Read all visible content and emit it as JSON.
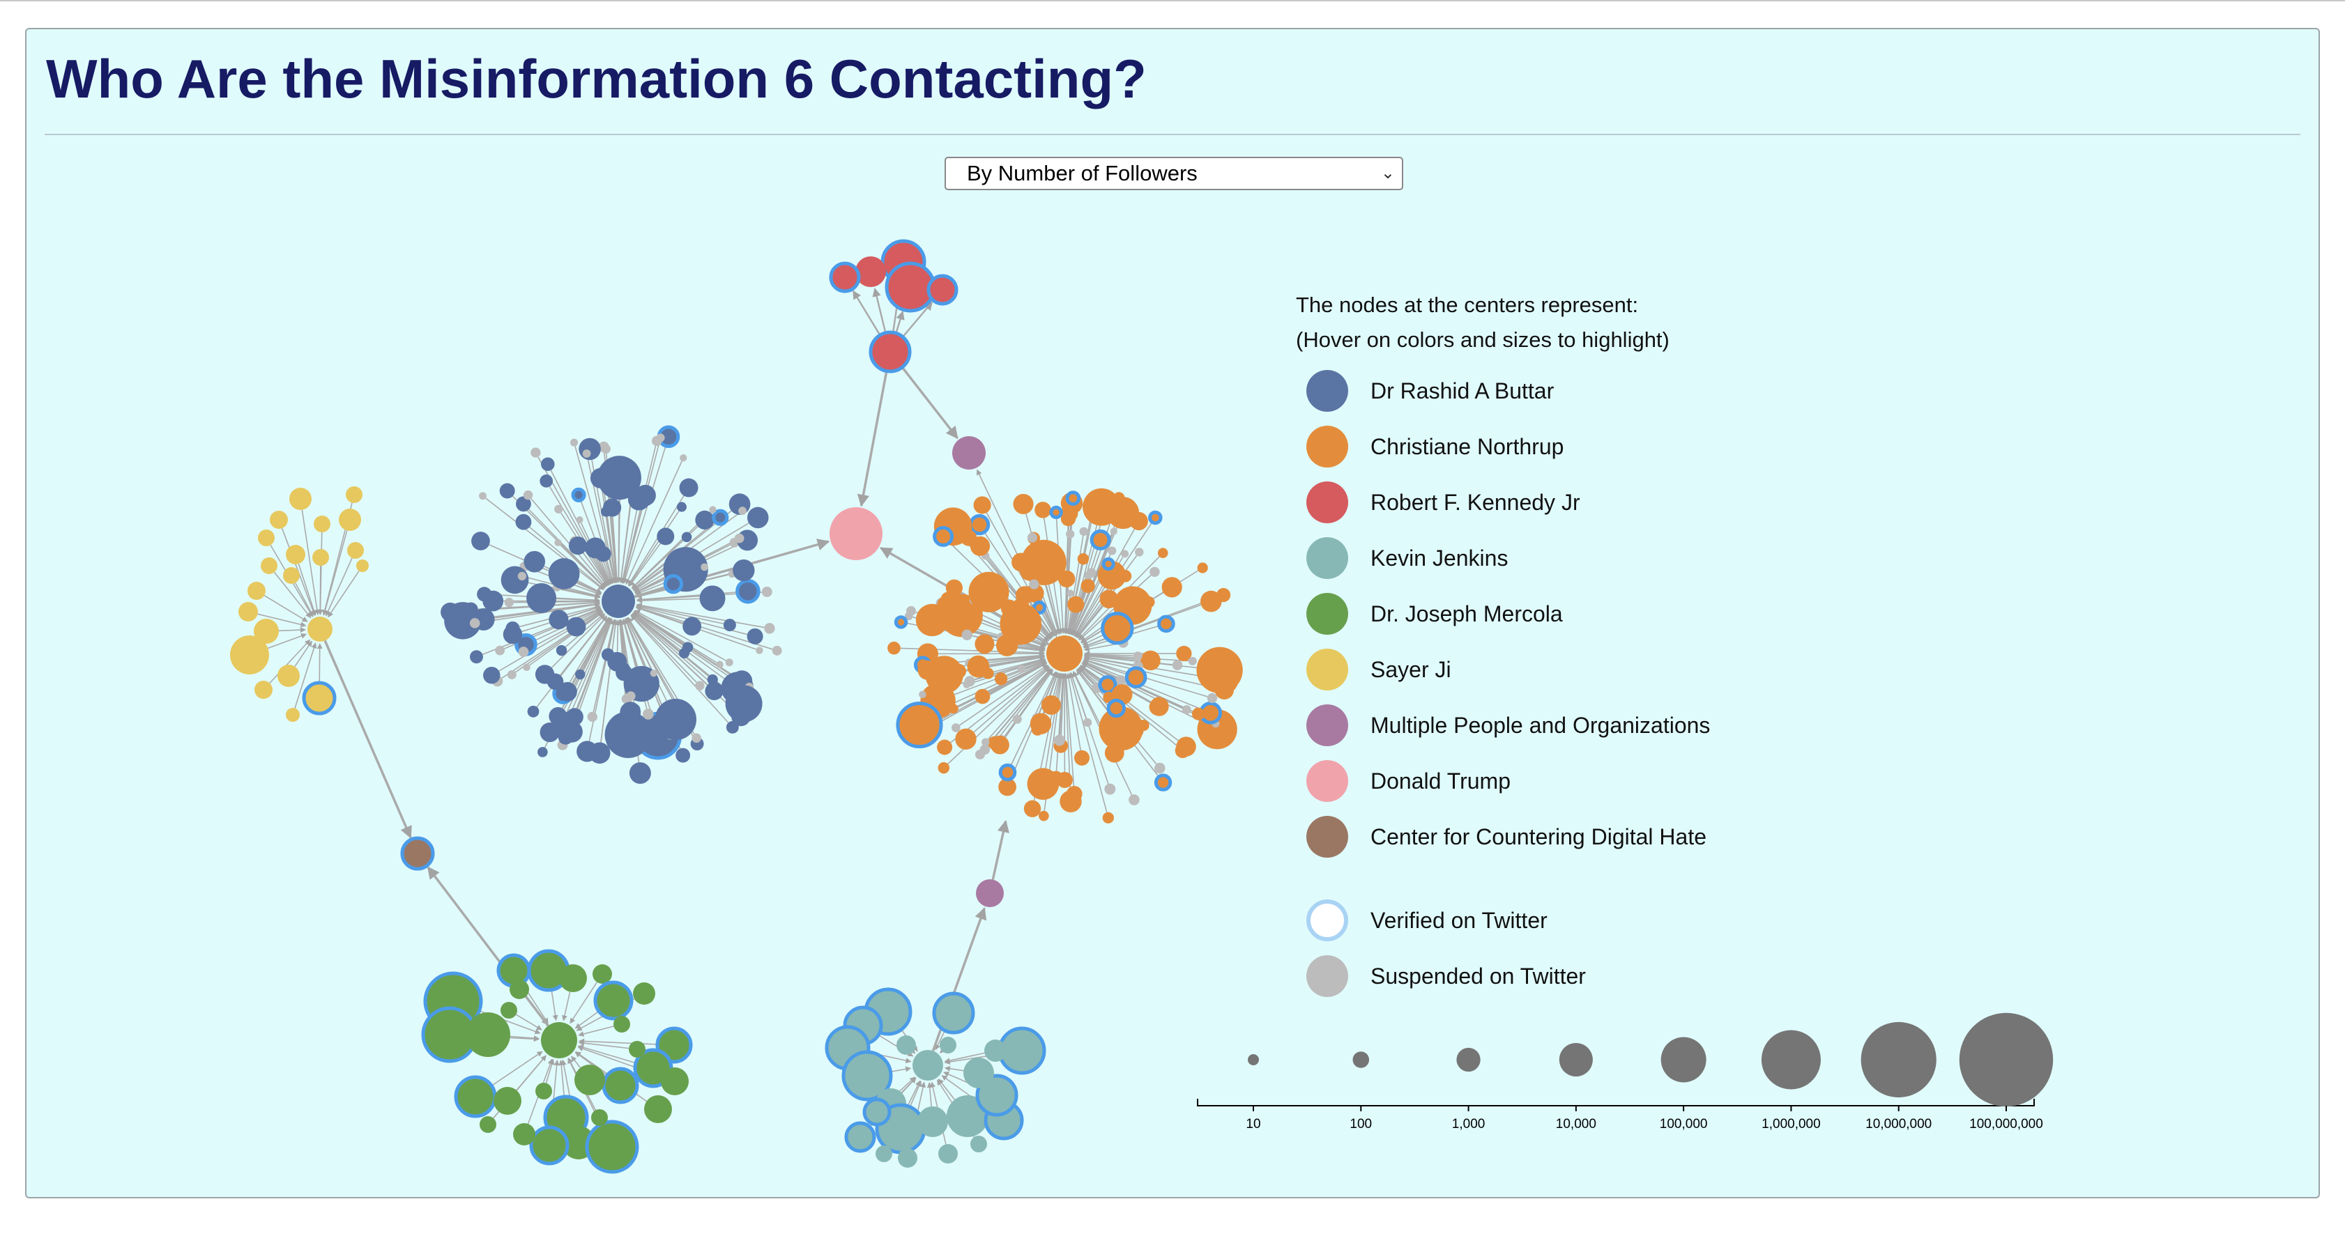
{
  "title": "Who Are the Misinformation 6 Contacting?",
  "dropdown": {
    "selected": "By Number of Followers"
  },
  "legend": {
    "heading": "The nodes at the centers represent:",
    "hint": "(Hover on colors and sizes to highlight)",
    "colors": [
      {
        "label": "Dr Rashid A Buttar",
        "color": "#5a75a4"
      },
      {
        "label": "Christiane Northrup",
        "color": "#e38d3c"
      },
      {
        "label": "Robert F. Kennedy Jr",
        "color": "#d55b5e"
      },
      {
        "label": "Kevin Jenkins",
        "color": "#87b8b5"
      },
      {
        "label": "Dr. Joseph Mercola",
        "color": "#67a04d"
      },
      {
        "label": "Sayer Ji",
        "color": "#e7c85e"
      },
      {
        "label": "Multiple People and Organizations",
        "color": "#a87aa2"
      },
      {
        "label": "Donald Trump",
        "color": "#f0a3ab"
      },
      {
        "label": "Center for Countering Digital Hate",
        "color": "#9a7763"
      }
    ],
    "status": [
      {
        "label": "Verified on Twitter",
        "style": "verified"
      },
      {
        "label": "Suspended on Twitter",
        "style": "suspended"
      }
    ],
    "size_scale": {
      "ticks": [
        "10",
        "100",
        "1,000",
        "10,000",
        "100,000",
        "1,000,000",
        "10,000,000",
        "100,000,000"
      ]
    }
  },
  "styles": {
    "verified_ring": "#4a9be8",
    "suspended_fill": "#bcbcbc",
    "edge": "#aaaaaa",
    "panel_bg": "#e0fbfc"
  }
}
